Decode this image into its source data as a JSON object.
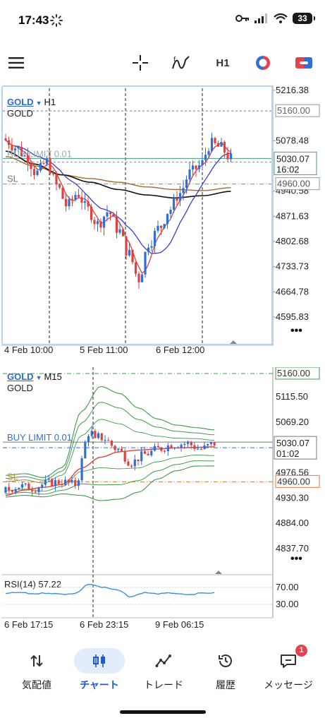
{
  "status_bar": {
    "time": "17:43",
    "battery": "33"
  },
  "toolbar": {
    "menu_icon": "hamburger-menu-icon",
    "crosshair_icon": "crosshair-icon",
    "indicators_icon": "indicators-icon",
    "timeframe": "H1",
    "objects_icon": "color-scheme-icon",
    "trade_icon": "one-click-trading-icon"
  },
  "top_chart": {
    "symbol": "GOLD",
    "timeframe": "H1",
    "description": "GOLD",
    "price_labels": [
      "5216.38",
      "5078.48",
      "4940.58",
      "4871.63",
      "4802.68",
      "4733.73",
      "4664.78",
      "4595.83"
    ],
    "label_5160": "5160.00",
    "current_price": "5030.07",
    "countdown": "16:02",
    "sl_price": "4960.00",
    "buy_limit_label": "BUY LIMIT 0.01",
    "sl_label": "SL",
    "time_labels": [
      "4 Feb 10:00",
      "5 Feb 11:00",
      "6 Feb 12:00"
    ],
    "more": "•••"
  },
  "bottom_chart": {
    "symbol": "GOLD",
    "timeframe": "M15",
    "description": "GOLD",
    "price_labels": [
      "5115.50",
      "5069.20",
      "4976.56",
      "4930.30",
      "4884.00",
      "4837.70"
    ],
    "label_5160": "5160.00",
    "current_price": "5030.07",
    "countdown": "01:02",
    "sl_price": "4960.00",
    "buy_limit_label": "BUY LIMIT 0.01",
    "sl_label": "SL",
    "rsi_label": "RSI(14) 57.22",
    "rsi_levels": [
      "70.00",
      "30.00"
    ],
    "time_labels": [
      "6 Feb 17:15",
      "6 Feb 23:15",
      "9 Feb 06:15"
    ],
    "more": "•••"
  },
  "colors": {
    "bull": "#2f6fd6",
    "bear": "#e0413f",
    "ma_fast": "#e0413f",
    "ma_mid": "#3b3bd0",
    "ma_slow_brown": "#a8692e",
    "ma_slow_black": "#111111",
    "bands": "#3f9a4a",
    "sl": "#e07b39",
    "accent": "#1e5bd0"
  },
  "bottom_nav": [
    {
      "label": "気配値",
      "icon": "quotes-arrows-icon"
    },
    {
      "label": "チャート",
      "icon": "candlestick-chart-icon",
      "active": true
    },
    {
      "label": "トレード",
      "icon": "trade-line-icon"
    },
    {
      "label": "履歴",
      "icon": "history-clock-icon"
    },
    {
      "label": "メッセージ",
      "icon": "messages-icon",
      "badge": "1"
    }
  ]
}
